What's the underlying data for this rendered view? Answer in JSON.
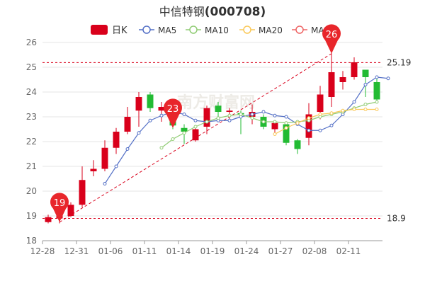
{
  "title": {
    "name": "中信特钢",
    "code": "(000708)"
  },
  "legend": [
    {
      "key": "kline",
      "label": "日K",
      "color": "#d9001b"
    },
    {
      "key": "ma5",
      "label": "MA5",
      "color": "#5470c6"
    },
    {
      "key": "ma10",
      "label": "MA10",
      "color": "#91cc75"
    },
    {
      "key": "ma20",
      "label": "MA20",
      "color": "#fac858"
    },
    {
      "key": "ma30",
      "label": "MA30",
      "color": "#ee6666"
    }
  ],
  "colors": {
    "up": "#d9001b",
    "down": "#22bb33",
    "grid": "#e6e6e6",
    "axis": "#666666",
    "ref": "#d9001b",
    "pin": "#e8262b"
  },
  "chart_data": {
    "type": "candlestick",
    "ylim": [
      18,
      26
    ],
    "yticks": [
      18,
      19,
      20,
      21,
      22,
      23,
      24,
      25,
      26
    ],
    "xtick_labels": [
      "12-28",
      "12-31",
      "01-06",
      "01-11",
      "01-14",
      "01-19",
      "01-24",
      "01-27",
      "02-08",
      "02-11"
    ],
    "xtick_index": [
      0,
      3,
      6,
      9,
      12,
      15,
      18,
      21,
      24,
      27
    ],
    "candles": [
      {
        "o": 18.75,
        "c": 18.95,
        "h": 19.05,
        "l": 18.7
      },
      {
        "o": 18.9,
        "c": 19.05,
        "h": 19.35,
        "l": 18.7
      },
      {
        "o": 19.0,
        "c": 19.45,
        "h": 19.55,
        "l": 18.95
      },
      {
        "o": 19.45,
        "c": 20.45,
        "h": 21.0,
        "l": 19.35
      },
      {
        "o": 20.8,
        "c": 20.9,
        "h": 21.25,
        "l": 20.6
      },
      {
        "o": 20.9,
        "c": 21.75,
        "h": 22.05,
        "l": 20.8
      },
      {
        "o": 21.75,
        "c": 22.4,
        "h": 22.55,
        "l": 21.5
      },
      {
        "o": 22.4,
        "c": 23.0,
        "h": 23.4,
        "l": 22.3
      },
      {
        "o": 23.25,
        "c": 23.8,
        "h": 24.0,
        "l": 22.6
      },
      {
        "o": 23.9,
        "c": 23.35,
        "h": 24.0,
        "l": 23.2
      },
      {
        "o": 23.25,
        "c": 23.4,
        "h": 23.6,
        "l": 22.8
      },
      {
        "o": 23.0,
        "c": 22.65,
        "h": 23.3,
        "l": 22.5
      },
      {
        "o": 22.55,
        "c": 22.4,
        "h": 22.7,
        "l": 21.9
      },
      {
        "o": 22.05,
        "c": 22.5,
        "h": 22.6,
        "l": 22.0
      },
      {
        "o": 22.6,
        "c": 23.35,
        "h": 23.45,
        "l": 22.3
      },
      {
        "o": 23.45,
        "c": 23.2,
        "h": 23.6,
        "l": 22.85
      },
      {
        "o": 23.2,
        "c": 23.25,
        "h": 23.35,
        "l": 22.8
      },
      {
        "o": 23.15,
        "c": 23.1,
        "h": 23.25,
        "l": 22.3
      },
      {
        "o": 23.0,
        "c": 23.2,
        "h": 23.5,
        "l": 22.7
      },
      {
        "o": 23.0,
        "c": 22.6,
        "h": 23.1,
        "l": 22.5
      },
      {
        "o": 22.5,
        "c": 22.75,
        "h": 22.8,
        "l": 22.3
      },
      {
        "o": 22.7,
        "c": 21.95,
        "h": 22.75,
        "l": 21.85
      },
      {
        "o": 22.05,
        "c": 21.7,
        "h": 22.1,
        "l": 21.5
      },
      {
        "o": 22.15,
        "c": 23.1,
        "h": 23.55,
        "l": 21.85
      },
      {
        "o": 23.2,
        "c": 23.9,
        "h": 24.25,
        "l": 22.9
      },
      {
        "o": 23.8,
        "c": 24.8,
        "h": 26.0,
        "l": 23.4
      },
      {
        "o": 24.4,
        "c": 24.6,
        "h": 24.85,
        "l": 24.1
      },
      {
        "o": 24.6,
        "c": 25.2,
        "h": 25.4,
        "l": 24.5
      },
      {
        "o": 24.9,
        "c": 24.6,
        "h": 24.9,
        "l": 23.8
      },
      {
        "o": 24.4,
        "c": 23.7,
        "h": 24.55,
        "l": 23.6
      }
    ],
    "series": [
      {
        "name": "MA5",
        "color": "#5470c6",
        "start": 5,
        "values": [
          20.3,
          21.0,
          21.7,
          22.35,
          22.85,
          23.05,
          23.2,
          23.1,
          22.85,
          22.8,
          22.85,
          22.85,
          23.0,
          23.1,
          23.2,
          23.05,
          23.0,
          22.7,
          22.45,
          22.45,
          22.65,
          23.1,
          23.6,
          24.3,
          24.6,
          24.55
        ]
      },
      {
        "name": "MA10",
        "color": "#91cc75",
        "start": 10,
        "values": [
          21.75,
          22.1,
          22.35,
          22.6,
          22.8,
          22.95,
          23.05,
          23.1,
          22.95,
          22.8,
          22.8,
          22.75,
          22.8,
          22.85,
          23.0,
          23.1,
          23.2,
          23.35,
          23.5,
          23.6
        ]
      },
      {
        "name": "MA20",
        "color": "#fac858",
        "start": 20,
        "values": [
          22.3,
          22.55,
          22.75,
          22.95,
          23.1,
          23.15,
          23.25,
          23.3,
          23.3,
          23.3
        ]
      }
    ],
    "reference_lines": [
      {
        "value": 25.19,
        "label": "25.19"
      },
      {
        "value": 18.9,
        "label": "18.9"
      }
    ],
    "trend_line": {
      "from": {
        "index": 1,
        "value": 18.75
      },
      "to": {
        "index": 25,
        "value": 25.55
      }
    },
    "markers": [
      {
        "label": "19",
        "index": 1,
        "value": 18.75
      },
      {
        "label": "23",
        "index": 11,
        "value": 22.55
      },
      {
        "label": "26",
        "index": 25,
        "value": 25.55
      }
    ]
  }
}
